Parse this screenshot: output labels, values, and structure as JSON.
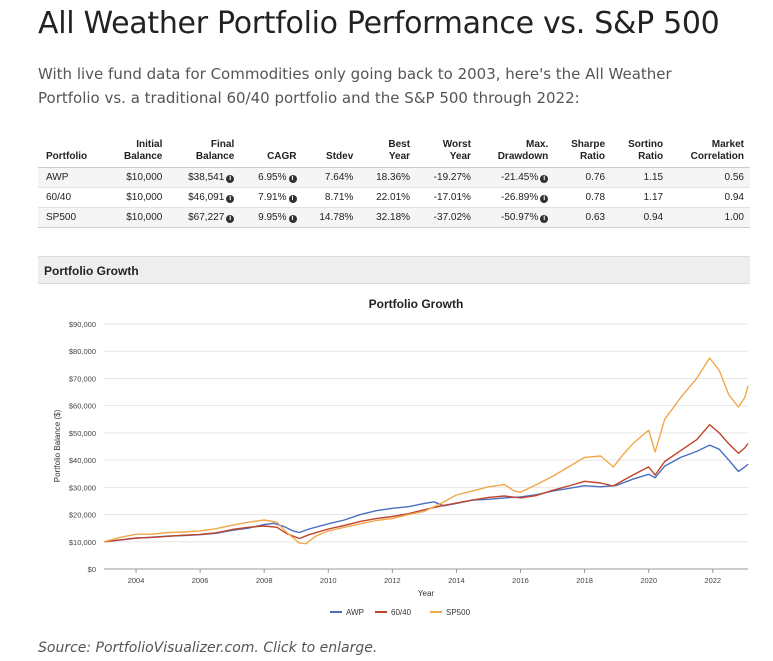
{
  "page": {
    "title": "All Weather Portfolio Performance vs. S&P 500",
    "intro": "With live fund data for Commodities only going back to 2003, here's the All Weather Portfolio vs. a traditional 60/40 portfolio and the S&P 500 through 2022:",
    "source": "Source: PortfolioVisualizer.com. Click to enlarge."
  },
  "stats_table": {
    "headers": [
      [
        "Portfolio"
      ],
      [
        "Initial",
        "Balance"
      ],
      [
        "Final",
        "Balance"
      ],
      [
        "CAGR"
      ],
      [
        "Stdev"
      ],
      [
        "Best",
        "Year"
      ],
      [
        "Worst",
        "Year"
      ],
      [
        "Max.",
        "Drawdown"
      ],
      [
        "Sharpe",
        "Ratio"
      ],
      [
        "Sortino",
        "Ratio"
      ],
      [
        "Market",
        "Correlation"
      ]
    ],
    "rows": [
      [
        "AWP",
        "$10,000",
        "$38,541",
        "6.95%",
        "7.64%",
        "18.36%",
        "-19.27%",
        "-21.45%",
        "0.76",
        "1.15",
        "0.56"
      ],
      [
        "60/40",
        "$10,000",
        "$46,091",
        "7.91%",
        "8.71%",
        "22.01%",
        "-17.01%",
        "-26.89%",
        "0.78",
        "1.17",
        "0.94"
      ],
      [
        "SP500",
        "$10,000",
        "$67,227",
        "9.95%",
        "14.78%",
        "32.18%",
        "-37.02%",
        "-50.97%",
        "0.63",
        "0.94",
        "1.00"
      ]
    ],
    "info_columns": [
      2,
      3,
      7
    ],
    "info_glyph": "i"
  },
  "panel": {
    "header": "Portfolio Growth"
  },
  "chart_data": {
    "type": "line",
    "title": "Portfolio Growth",
    "xlabel": "Year",
    "ylabel": "Portfolio Balance ($)",
    "xlim": [
      2003,
      2023.1
    ],
    "ylim": [
      0,
      90000
    ],
    "x_ticks": [
      2004,
      2006,
      2008,
      2010,
      2012,
      2014,
      2016,
      2018,
      2020,
      2022
    ],
    "y_ticks": [
      0,
      10000,
      20000,
      30000,
      40000,
      50000,
      60000,
      70000,
      80000,
      90000
    ],
    "y_tick_labels": [
      "$0",
      "$10,000",
      "$20,000",
      "$30,000",
      "$40,000",
      "$50,000",
      "$60,000",
      "$70,000",
      "$80,000",
      "$90,000"
    ],
    "legend_position": "bottom-center",
    "series": [
      {
        "name": "AWP",
        "color": "#4a6fc0",
        "points": [
          [
            2003,
            10000
          ],
          [
            2003.5,
            10600
          ],
          [
            2004,
            11300
          ],
          [
            2004.5,
            11700
          ],
          [
            2005,
            12100
          ],
          [
            2005.5,
            12300
          ],
          [
            2006,
            12600
          ],
          [
            2006.5,
            13100
          ],
          [
            2007,
            14200
          ],
          [
            2007.5,
            15000
          ],
          [
            2008,
            16300
          ],
          [
            2008.3,
            16800
          ],
          [
            2008.6,
            15700
          ],
          [
            2008.9,
            14000
          ],
          [
            2009.1,
            13400
          ],
          [
            2009.4,
            14700
          ],
          [
            2010,
            16600
          ],
          [
            2010.5,
            18000
          ],
          [
            2011,
            20000
          ],
          [
            2011.5,
            21400
          ],
          [
            2012,
            22300
          ],
          [
            2012.5,
            22900
          ],
          [
            2013,
            24100
          ],
          [
            2013.3,
            24700
          ],
          [
            2013.6,
            23200
          ],
          [
            2014,
            24100
          ],
          [
            2014.5,
            25300
          ],
          [
            2015,
            25600
          ],
          [
            2015.5,
            26100
          ],
          [
            2016,
            26500
          ],
          [
            2016.5,
            27300
          ],
          [
            2017,
            28600
          ],
          [
            2017.5,
            29600
          ],
          [
            2018,
            30600
          ],
          [
            2018.5,
            30200
          ],
          [
            2019,
            30700
          ],
          [
            2019.5,
            33000
          ],
          [
            2020,
            34800
          ],
          [
            2020.2,
            33500
          ],
          [
            2020.5,
            37800
          ],
          [
            2021,
            41000
          ],
          [
            2021.5,
            43200
          ],
          [
            2021.9,
            45500
          ],
          [
            2022.2,
            44000
          ],
          [
            2022.5,
            40000
          ],
          [
            2022.8,
            35800
          ],
          [
            2023,
            37500
          ],
          [
            2023.1,
            38541
          ]
        ]
      },
      {
        "name": "60/40",
        "color": "#c0432c",
        "points": [
          [
            2003,
            10000
          ],
          [
            2003.5,
            10700
          ],
          [
            2004,
            11400
          ],
          [
            2004.5,
            11600
          ],
          [
            2005,
            12000
          ],
          [
            2005.5,
            12400
          ],
          [
            2006,
            12700
          ],
          [
            2006.5,
            13300
          ],
          [
            2007,
            14500
          ],
          [
            2007.5,
            15300
          ],
          [
            2008,
            15800
          ],
          [
            2008.4,
            15300
          ],
          [
            2008.7,
            13000
          ],
          [
            2009.1,
            11200
          ],
          [
            2009.4,
            12600
          ],
          [
            2010,
            14700
          ],
          [
            2010.5,
            16000
          ],
          [
            2011,
            17500
          ],
          [
            2011.5,
            18500
          ],
          [
            2012,
            19300
          ],
          [
            2012.5,
            20300
          ],
          [
            2013,
            21800
          ],
          [
            2013.5,
            23100
          ],
          [
            2014,
            24200
          ],
          [
            2014.5,
            25300
          ],
          [
            2015,
            26300
          ],
          [
            2015.5,
            26800
          ],
          [
            2016,
            26100
          ],
          [
            2016.5,
            27000
          ],
          [
            2017,
            28900
          ],
          [
            2017.5,
            30500
          ],
          [
            2018,
            32200
          ],
          [
            2018.5,
            31600
          ],
          [
            2018.9,
            30500
          ],
          [
            2019.2,
            32500
          ],
          [
            2019.5,
            34500
          ],
          [
            2020,
            37500
          ],
          [
            2020.2,
            34500
          ],
          [
            2020.5,
            39500
          ],
          [
            2021,
            43500
          ],
          [
            2021.5,
            47500
          ],
          [
            2021.9,
            53000
          ],
          [
            2022.2,
            50000
          ],
          [
            2022.5,
            46000
          ],
          [
            2022.8,
            42500
          ],
          [
            2023,
            44500
          ],
          [
            2023.1,
            46091
          ]
        ]
      },
      {
        "name": "SP500",
        "color": "#f0a84a",
        "points": [
          [
            2003,
            10000
          ],
          [
            2003.5,
            11600
          ],
          [
            2004,
            12800
          ],
          [
            2004.5,
            12800
          ],
          [
            2005,
            13400
          ],
          [
            2005.5,
            13600
          ],
          [
            2006,
            14000
          ],
          [
            2006.5,
            14800
          ],
          [
            2007,
            16100
          ],
          [
            2007.5,
            17200
          ],
          [
            2008,
            18000
          ],
          [
            2008.4,
            17200
          ],
          [
            2008.7,
            13500
          ],
          [
            2009.1,
            9500
          ],
          [
            2009.3,
            9300
          ],
          [
            2009.6,
            12000
          ],
          [
            2010,
            14000
          ],
          [
            2010.5,
            15300
          ],
          [
            2011,
            16600
          ],
          [
            2011.5,
            17800
          ],
          [
            2012,
            18500
          ],
          [
            2012.5,
            20000
          ],
          [
            2013,
            21200
          ],
          [
            2013.5,
            24000
          ],
          [
            2014,
            27200
          ],
          [
            2014.5,
            28700
          ],
          [
            2015,
            30200
          ],
          [
            2015.5,
            31000
          ],
          [
            2015.8,
            28700
          ],
          [
            2016,
            28200
          ],
          [
            2016.5,
            31000
          ],
          [
            2017,
            34000
          ],
          [
            2017.5,
            37500
          ],
          [
            2018,
            41000
          ],
          [
            2018.5,
            41500
          ],
          [
            2018.9,
            37500
          ],
          [
            2019.2,
            42000
          ],
          [
            2019.5,
            46000
          ],
          [
            2020,
            51000
          ],
          [
            2020.2,
            43000
          ],
          [
            2020.5,
            55000
          ],
          [
            2021,
            63000
          ],
          [
            2021.5,
            70000
          ],
          [
            2021.9,
            77500
          ],
          [
            2022.2,
            73000
          ],
          [
            2022.5,
            64000
          ],
          [
            2022.8,
            59500
          ],
          [
            2023,
            63000
          ],
          [
            2023.1,
            67227
          ]
        ]
      }
    ]
  }
}
